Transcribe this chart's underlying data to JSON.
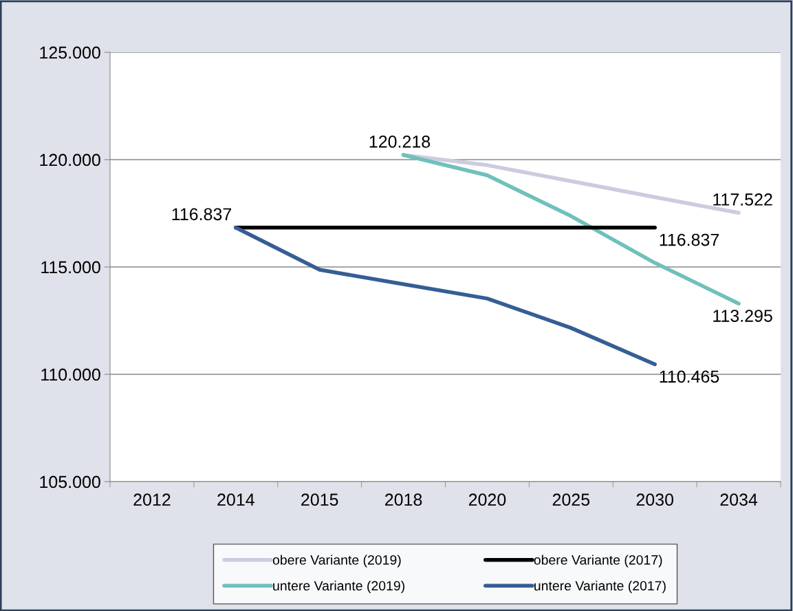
{
  "chart_data": {
    "type": "line",
    "categories": [
      "2012",
      "2014",
      "2015",
      "2018",
      "2020",
      "2025",
      "2030",
      "2034"
    ],
    "series": [
      {
        "name": "obere Variante (2019)",
        "color": "#cccce0",
        "values": [
          null,
          null,
          null,
          120218,
          119740,
          119000,
          118250,
          117522
        ],
        "value_labels": [
          null,
          null,
          null,
          null,
          null,
          null,
          null,
          "117.522"
        ]
      },
      {
        "name": "untere Variante (2019)",
        "color": "#70c0bc",
        "values": [
          null,
          null,
          null,
          120218,
          119270,
          117370,
          115190,
          113295
        ],
        "value_labels": [
          null,
          null,
          null,
          "120.218",
          null,
          null,
          null,
          "113.295"
        ]
      },
      {
        "name": "obere Variante (2017)",
        "color": "#000000",
        "values": [
          null,
          116837,
          116837,
          116837,
          116837,
          116837,
          116837,
          null
        ],
        "value_labels": [
          null,
          null,
          null,
          null,
          null,
          null,
          "116.837",
          null
        ]
      },
      {
        "name": "untere Variante (2017)",
        "color": "#355e95",
        "values": [
          null,
          116837,
          114870,
          114200,
          113530,
          112160,
          110465,
          null
        ],
        "value_labels": [
          null,
          "116.837",
          null,
          null,
          null,
          null,
          "110.465",
          null
        ]
      }
    ],
    "ylim": [
      105000,
      125000
    ],
    "yticks": [
      {
        "value": 105000,
        "label": "105.000"
      },
      {
        "value": 110000,
        "label": "110.000"
      },
      {
        "value": 115000,
        "label": "115.000"
      },
      {
        "value": 120000,
        "label": "120.000"
      },
      {
        "value": 125000,
        "label": "125.000"
      }
    ],
    "grid": "y",
    "legend": "bottom",
    "marker": "none",
    "line_style": "solid"
  }
}
